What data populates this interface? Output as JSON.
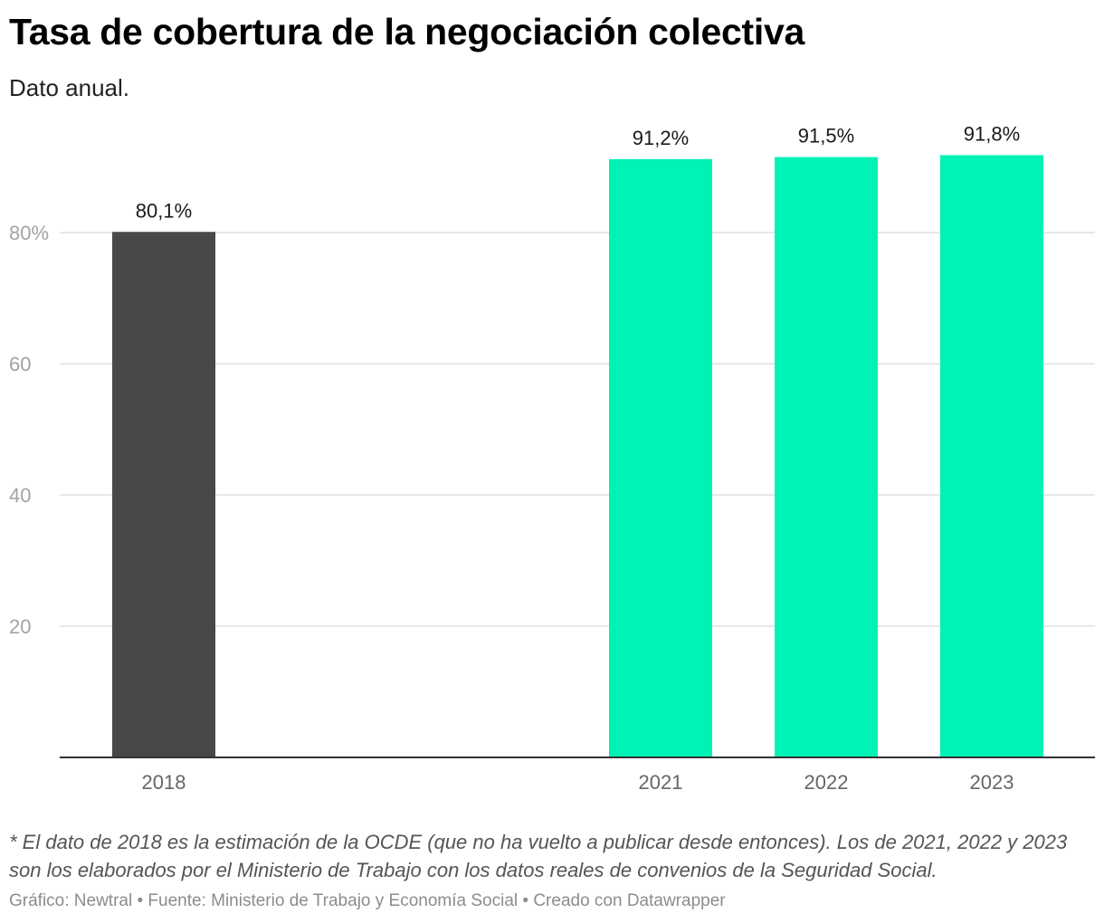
{
  "chart_data": {
    "type": "bar",
    "title": "Tasa de cobertura de la negociación colectiva",
    "subtitle": "Dato anual.",
    "categories": [
      "2018",
      "2021",
      "2022",
      "2023"
    ],
    "values": [
      80.1,
      91.2,
      91.5,
      91.8
    ],
    "value_labels": [
      "80,1%",
      "91,2%",
      "91,5%",
      "91,8%"
    ],
    "bar_colors": [
      "#484848",
      "#00f2b5",
      "#00f2b5",
      "#00f2b5"
    ],
    "ylim": [
      0,
      100
    ],
    "yticks": [
      {
        "value": 20,
        "label": "20"
      },
      {
        "value": 40,
        "label": "40"
      },
      {
        "value": 60,
        "label": "60"
      },
      {
        "value": 80,
        "label": "80%"
      }
    ],
    "grid": true,
    "xlabel": "",
    "ylabel": ""
  },
  "notes": "* El dato de 2018 es la estimación de la OCDE (que no ha vuelto a publicar desde entonces). Los de 2021, 2022 y 2023 son los elaborados por el Ministerio de Trabajo con los datos reales de convenios de la Seguridad Social.",
  "footer": "Gráfico: Newtral • Fuente: Ministerio de Trabajo y Economía Social • Creado con Datawrapper"
}
